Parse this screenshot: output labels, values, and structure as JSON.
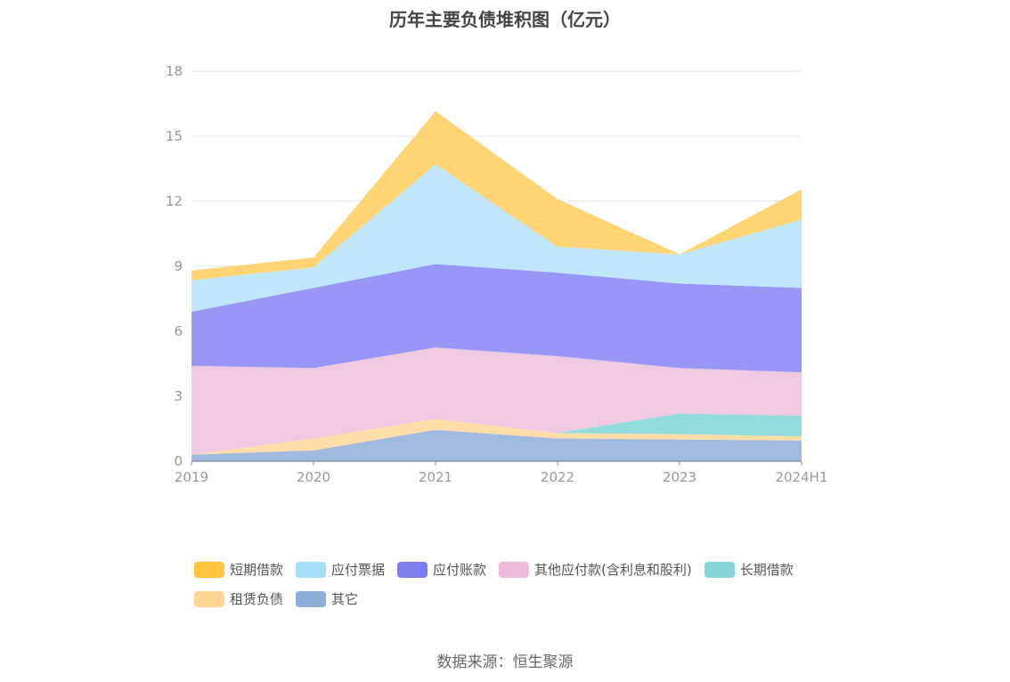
{
  "chart_data": {
    "type": "area",
    "stacked": true,
    "title": "历年主要负债堆积图（亿元）",
    "categories": [
      "2019",
      "2020",
      "2021",
      "2022",
      "2023",
      "2024H1"
    ],
    "ylim": [
      0,
      18
    ],
    "yticks": [
      0,
      3,
      6,
      9,
      12,
      15,
      18
    ],
    "grid": true,
    "legend_position": "bottom",
    "series": [
      {
        "name": "其它",
        "color": "#8fadd9",
        "values": [
          0.3,
          0.5,
          1.45,
          1.05,
          1.0,
          0.95
        ]
      },
      {
        "name": "租赁负债",
        "color": "#ffd79a",
        "values": [
          0.0,
          0.55,
          0.5,
          0.25,
          0.25,
          0.2
        ]
      },
      {
        "name": "长期借款",
        "color": "#7fd6d8",
        "values": [
          0.0,
          0.0,
          0.0,
          0.0,
          0.95,
          0.95
        ]
      },
      {
        "name": "其他应付款(含利息和股利)",
        "color": "#ecc0dd",
        "values": [
          4.1,
          3.25,
          3.3,
          3.55,
          2.1,
          2.0
        ]
      },
      {
        "name": "应付账款",
        "color": "#8685f3",
        "values": [
          2.5,
          3.7,
          3.85,
          3.85,
          3.9,
          3.9
        ]
      },
      {
        "name": "应付票据",
        "color": "#b4e2f9",
        "values": [
          1.45,
          0.95,
          4.6,
          1.2,
          1.35,
          3.15
        ]
      },
      {
        "name": "短期借款",
        "color": "#ffcc5c",
        "values": [
          0.45,
          0.45,
          2.45,
          2.2,
          0.0,
          1.4
        ]
      }
    ]
  },
  "legend": [
    {
      "label": "短期借款",
      "color": "#ffc53d"
    },
    {
      "label": "应付票据",
      "color": "#a5e0f8"
    },
    {
      "label": "应付账款",
      "color": "#7b7cf0"
    },
    {
      "label": "其他应付款(含利息和股利)",
      "color": "#edbbdc"
    },
    {
      "label": "长期借款",
      "color": "#86d6d9"
    },
    {
      "label": "租赁负债",
      "color": "#ffd596"
    },
    {
      "label": "其它",
      "color": "#8eadd9"
    }
  ],
  "source": "数据来源：恒生聚源"
}
